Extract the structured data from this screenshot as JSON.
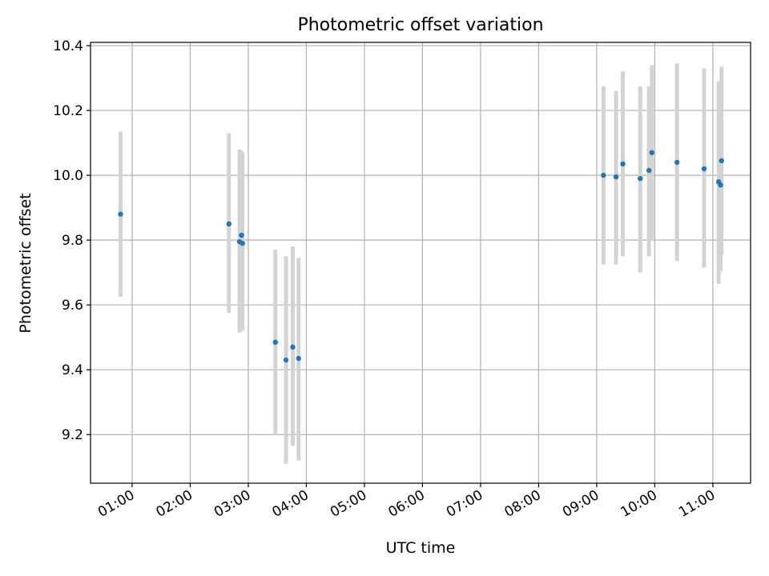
{
  "chart_data": {
    "type": "scatter",
    "title": "Photometric offset variation",
    "xlabel": "UTC time",
    "ylabel": "Photometric offset",
    "x_axis_kind": "time",
    "x_tick_values": [
      "01:00",
      "02:00",
      "03:00",
      "04:00",
      "05:00",
      "06:00",
      "07:00",
      "08:00",
      "09:00",
      "10:00",
      "11:00"
    ],
    "x_tick_labels": [
      "01:00",
      "02:00",
      "03:00",
      "04:00",
      "05:00",
      "06:00",
      "07:00",
      "08:00",
      "09:00",
      "10:00",
      "11:00"
    ],
    "xlim": [
      "00:17",
      "11:39"
    ],
    "y_ticks": [
      9.2,
      9.4,
      9.6,
      9.8,
      10.0,
      10.2,
      10.4
    ],
    "y_tick_labels": [
      "9.2",
      "9.4",
      "9.6",
      "9.8",
      "10.0",
      "10.2",
      "10.4"
    ],
    "ylim": [
      9.05,
      10.41
    ],
    "grid": true,
    "legend": "none",
    "colors": {
      "points": "#1f77b4",
      "error_bars": "#d3d3d3",
      "grid": "#b0b0b0"
    },
    "points": [
      {
        "x": "00:48",
        "y": 9.88,
        "low": 9.625,
        "high": 10.135
      },
      {
        "x": "02:40",
        "y": 9.85,
        "low": 9.575,
        "high": 10.13
      },
      {
        "x": "02:51",
        "y": 9.795,
        "low": 9.515,
        "high": 10.08
      },
      {
        "x": "02:53",
        "y": 9.815,
        "low": 9.52,
        "high": 10.075
      },
      {
        "x": "02:54",
        "y": 9.79,
        "low": 9.52,
        "high": 10.07
      },
      {
        "x": "03:28",
        "y": 9.485,
        "low": 9.2,
        "high": 9.77
      },
      {
        "x": "03:39",
        "y": 9.43,
        "low": 9.11,
        "high": 9.75
      },
      {
        "x": "03:46",
        "y": 9.47,
        "low": 9.165,
        "high": 9.78
      },
      {
        "x": "03:52",
        "y": 9.435,
        "low": 9.12,
        "high": 9.745
      },
      {
        "x": "09:07",
        "y": 10.0,
        "low": 9.725,
        "high": 10.275
      },
      {
        "x": "09:20",
        "y": 9.995,
        "low": 9.725,
        "high": 10.26
      },
      {
        "x": "09:27",
        "y": 10.035,
        "low": 9.75,
        "high": 10.32
      },
      {
        "x": "09:45",
        "y": 9.99,
        "low": 9.7,
        "high": 10.275
      },
      {
        "x": "09:54",
        "y": 10.015,
        "low": 9.75,
        "high": 10.275
      },
      {
        "x": "09:57",
        "y": 10.07,
        "low": 9.8,
        "high": 10.34
      },
      {
        "x": "10:23",
        "y": 10.04,
        "low": 9.735,
        "high": 10.345
      },
      {
        "x": "10:51",
        "y": 10.02,
        "low": 9.715,
        "high": 10.33
      },
      {
        "x": "11:06",
        "y": 9.98,
        "low": 9.665,
        "high": 10.29
      },
      {
        "x": "11:08",
        "y": 9.97,
        "low": 9.705,
        "high": 10.265
      },
      {
        "x": "11:09",
        "y": 10.045,
        "low": 9.755,
        "high": 10.335
      }
    ]
  }
}
